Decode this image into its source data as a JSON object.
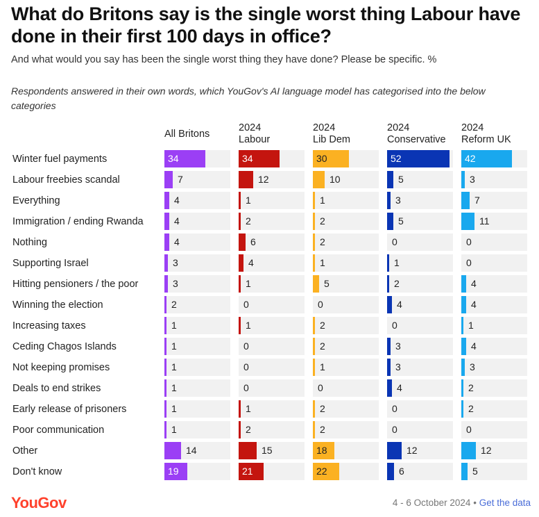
{
  "header": {
    "title": "What do Britons say is the single worst thing Labour have done in their first 100 days in office?",
    "subtitle": "And what would you say has been the single worst thing they have done? Please be specific. %",
    "note": "Respondents answered in their own words, which YouGov's AI language model has categorised into the below categories"
  },
  "footer": {
    "brand": "YouGov",
    "date": "4 - 6 October 2024",
    "separator": "•",
    "link": "Get the data"
  },
  "colors": {
    "All Britons": "#9b3ff5",
    "2024 Labour": "#c4150f",
    "2024 Lib Dem": "#fbb122",
    "2024 Conservative": "#0a35b4",
    "2024 Reform UK": "#19a8ee",
    "track": "#f1f1f1"
  },
  "chart_data": {
    "type": "bar",
    "orientation": "horizontal",
    "unit": "%",
    "xlim": [
      0,
      55
    ],
    "categories": [
      "Winter fuel payments",
      "Labour freebies scandal",
      "Everything",
      "Immigration / ending Rwanda",
      "Nothing",
      "Supporting Israel",
      "Hitting pensioners / the poor",
      "Winning the election",
      "Increasing taxes",
      "Ceding Chagos Islands",
      "Not keeping promises",
      "Deals to end strikes",
      "Early release of prisoners",
      "Poor communication",
      "Other",
      "Don't know"
    ],
    "series": [
      {
        "name": "All Britons",
        "header": [
          "All Britons"
        ],
        "values": [
          34,
          7,
          4,
          4,
          4,
          3,
          3,
          2,
          1,
          1,
          1,
          1,
          1,
          1,
          14,
          19
        ]
      },
      {
        "name": "2024 Labour",
        "header": [
          "2024",
          "Labour"
        ],
        "values": [
          34,
          12,
          1,
          2,
          6,
          4,
          1,
          0,
          1,
          0,
          0,
          0,
          1,
          2,
          15,
          21
        ]
      },
      {
        "name": "2024 Lib Dem",
        "header": [
          "2024",
          "Lib Dem"
        ],
        "values": [
          30,
          10,
          1,
          2,
          2,
          1,
          5,
          0,
          2,
          2,
          1,
          0,
          2,
          2,
          18,
          22
        ]
      },
      {
        "name": "2024 Conservative",
        "header": [
          "2024",
          "Conservative"
        ],
        "values": [
          52,
          5,
          3,
          5,
          0,
          1,
          2,
          4,
          0,
          3,
          3,
          4,
          0,
          0,
          12,
          6
        ]
      },
      {
        "name": "2024 Reform UK",
        "header": [
          "2024",
          "Reform UK"
        ],
        "values": [
          42,
          3,
          7,
          11,
          0,
          0,
          4,
          4,
          1,
          4,
          3,
          2,
          2,
          0,
          12,
          5
        ]
      }
    ]
  }
}
